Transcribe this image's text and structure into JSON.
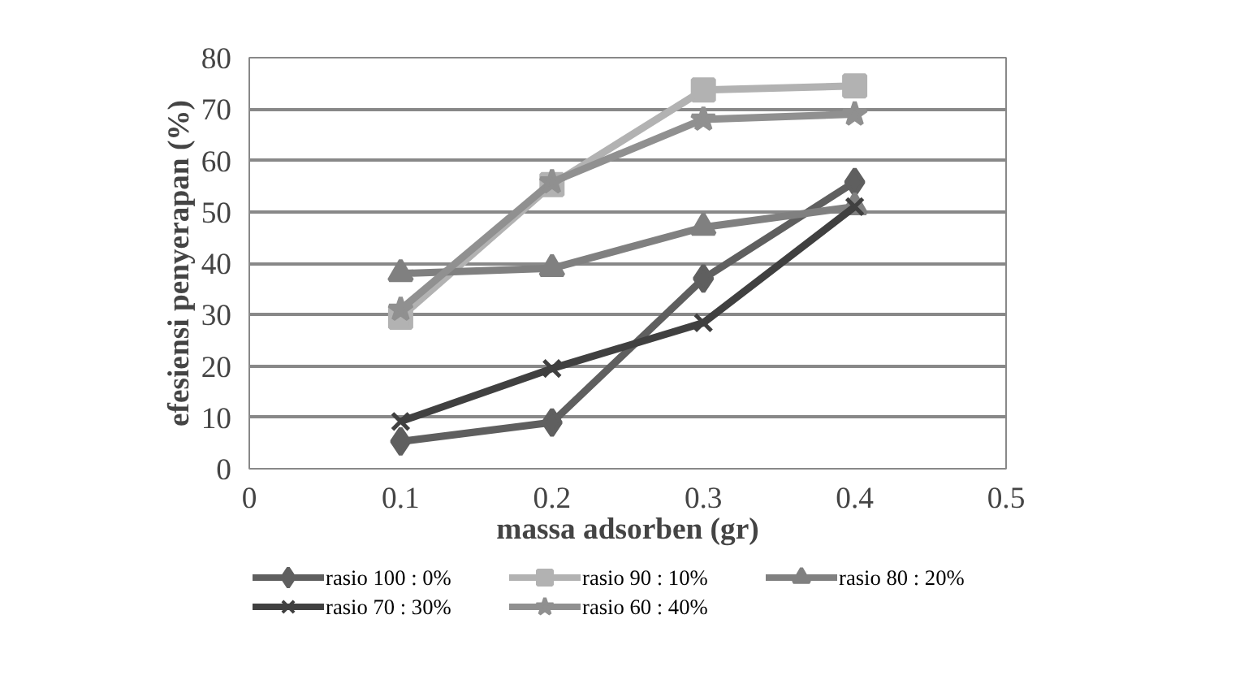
{
  "chart_data": {
    "type": "line",
    "xlabel": "massa adsorben (gr)",
    "ylabel": "efesiensi penyerapan (%)",
    "x": [
      0.1,
      0.2,
      0.3,
      0.4
    ],
    "xlim": [
      0,
      0.5
    ],
    "xticks": [
      0,
      0.1,
      0.2,
      0.3,
      0.4,
      0.5
    ],
    "ylim": [
      0,
      80
    ],
    "yticks": [
      0,
      10,
      20,
      30,
      40,
      50,
      60,
      70,
      80
    ],
    "grid": "y",
    "legend": "bottom",
    "series": [
      {
        "name": "rasio 100 : 0%",
        "color": "#5f5f5f",
        "marker": "diamond",
        "values": [
          5.3,
          9,
          37,
          55.8
        ]
      },
      {
        "name": "rasio 90 : 10%",
        "color": "#b2b2b2",
        "marker": "square",
        "values": [
          29.5,
          55.3,
          73.7,
          74.5
        ]
      },
      {
        "name": "rasio 80 : 20%",
        "color": "#808080",
        "marker": "triangle",
        "values": [
          38,
          39,
          47,
          51
        ]
      },
      {
        "name": "rasio 70 : 30%",
        "color": "#404040",
        "marker": "cross",
        "values": [
          9.2,
          19.5,
          28.4,
          51
        ]
      },
      {
        "name": "rasio 60 : 40%",
        "color": "#909090",
        "marker": "star",
        "values": [
          31,
          55.8,
          68,
          69
        ]
      }
    ]
  }
}
